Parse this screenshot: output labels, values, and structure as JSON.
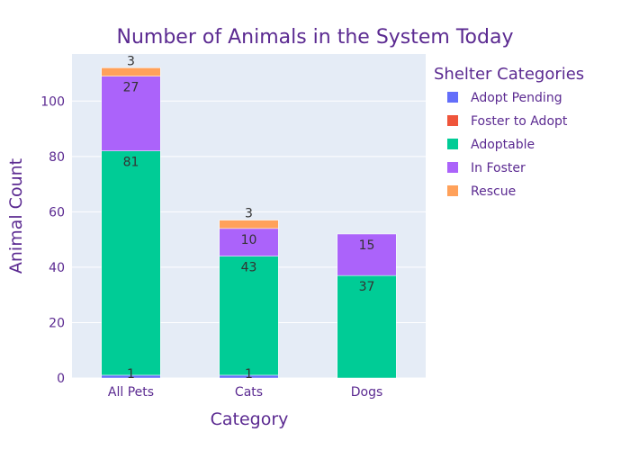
{
  "chart_data": {
    "type": "bar",
    "stacked": true,
    "title": "Number of Animals in the System Today",
    "xlabel": "Category",
    "ylabel": "Animal Count",
    "categories": [
      "All Pets",
      "Cats",
      "Dogs"
    ],
    "ylim": [
      0,
      117
    ],
    "yticks": [
      0,
      20,
      40,
      60,
      80,
      100
    ],
    "grid": true,
    "legend_title": "Shelter Categories",
    "legend_position": "right",
    "plot_background": "#e5ecf6",
    "series": [
      {
        "name": "Adopt Pending",
        "color": "#636efa",
        "values": [
          1,
          1,
          0
        ],
        "labels": [
          "1",
          "1",
          ""
        ]
      },
      {
        "name": "Foster to Adopt",
        "color": "#ef553b",
        "values": [
          0,
          0,
          0
        ],
        "labels": [
          "",
          "",
          ""
        ]
      },
      {
        "name": "Adoptable",
        "color": "#00cc96",
        "values": [
          81,
          43,
          37
        ],
        "labels": [
          "81",
          "43",
          "37"
        ]
      },
      {
        "name": "In Foster",
        "color": "#ab63fa",
        "values": [
          27,
          10,
          15
        ],
        "labels": [
          "27",
          "10",
          "15"
        ]
      },
      {
        "name": "Rescue",
        "color": "#ffa15a",
        "values": [
          3,
          3,
          0
        ],
        "labels": [
          "3",
          "3",
          ""
        ]
      }
    ]
  }
}
